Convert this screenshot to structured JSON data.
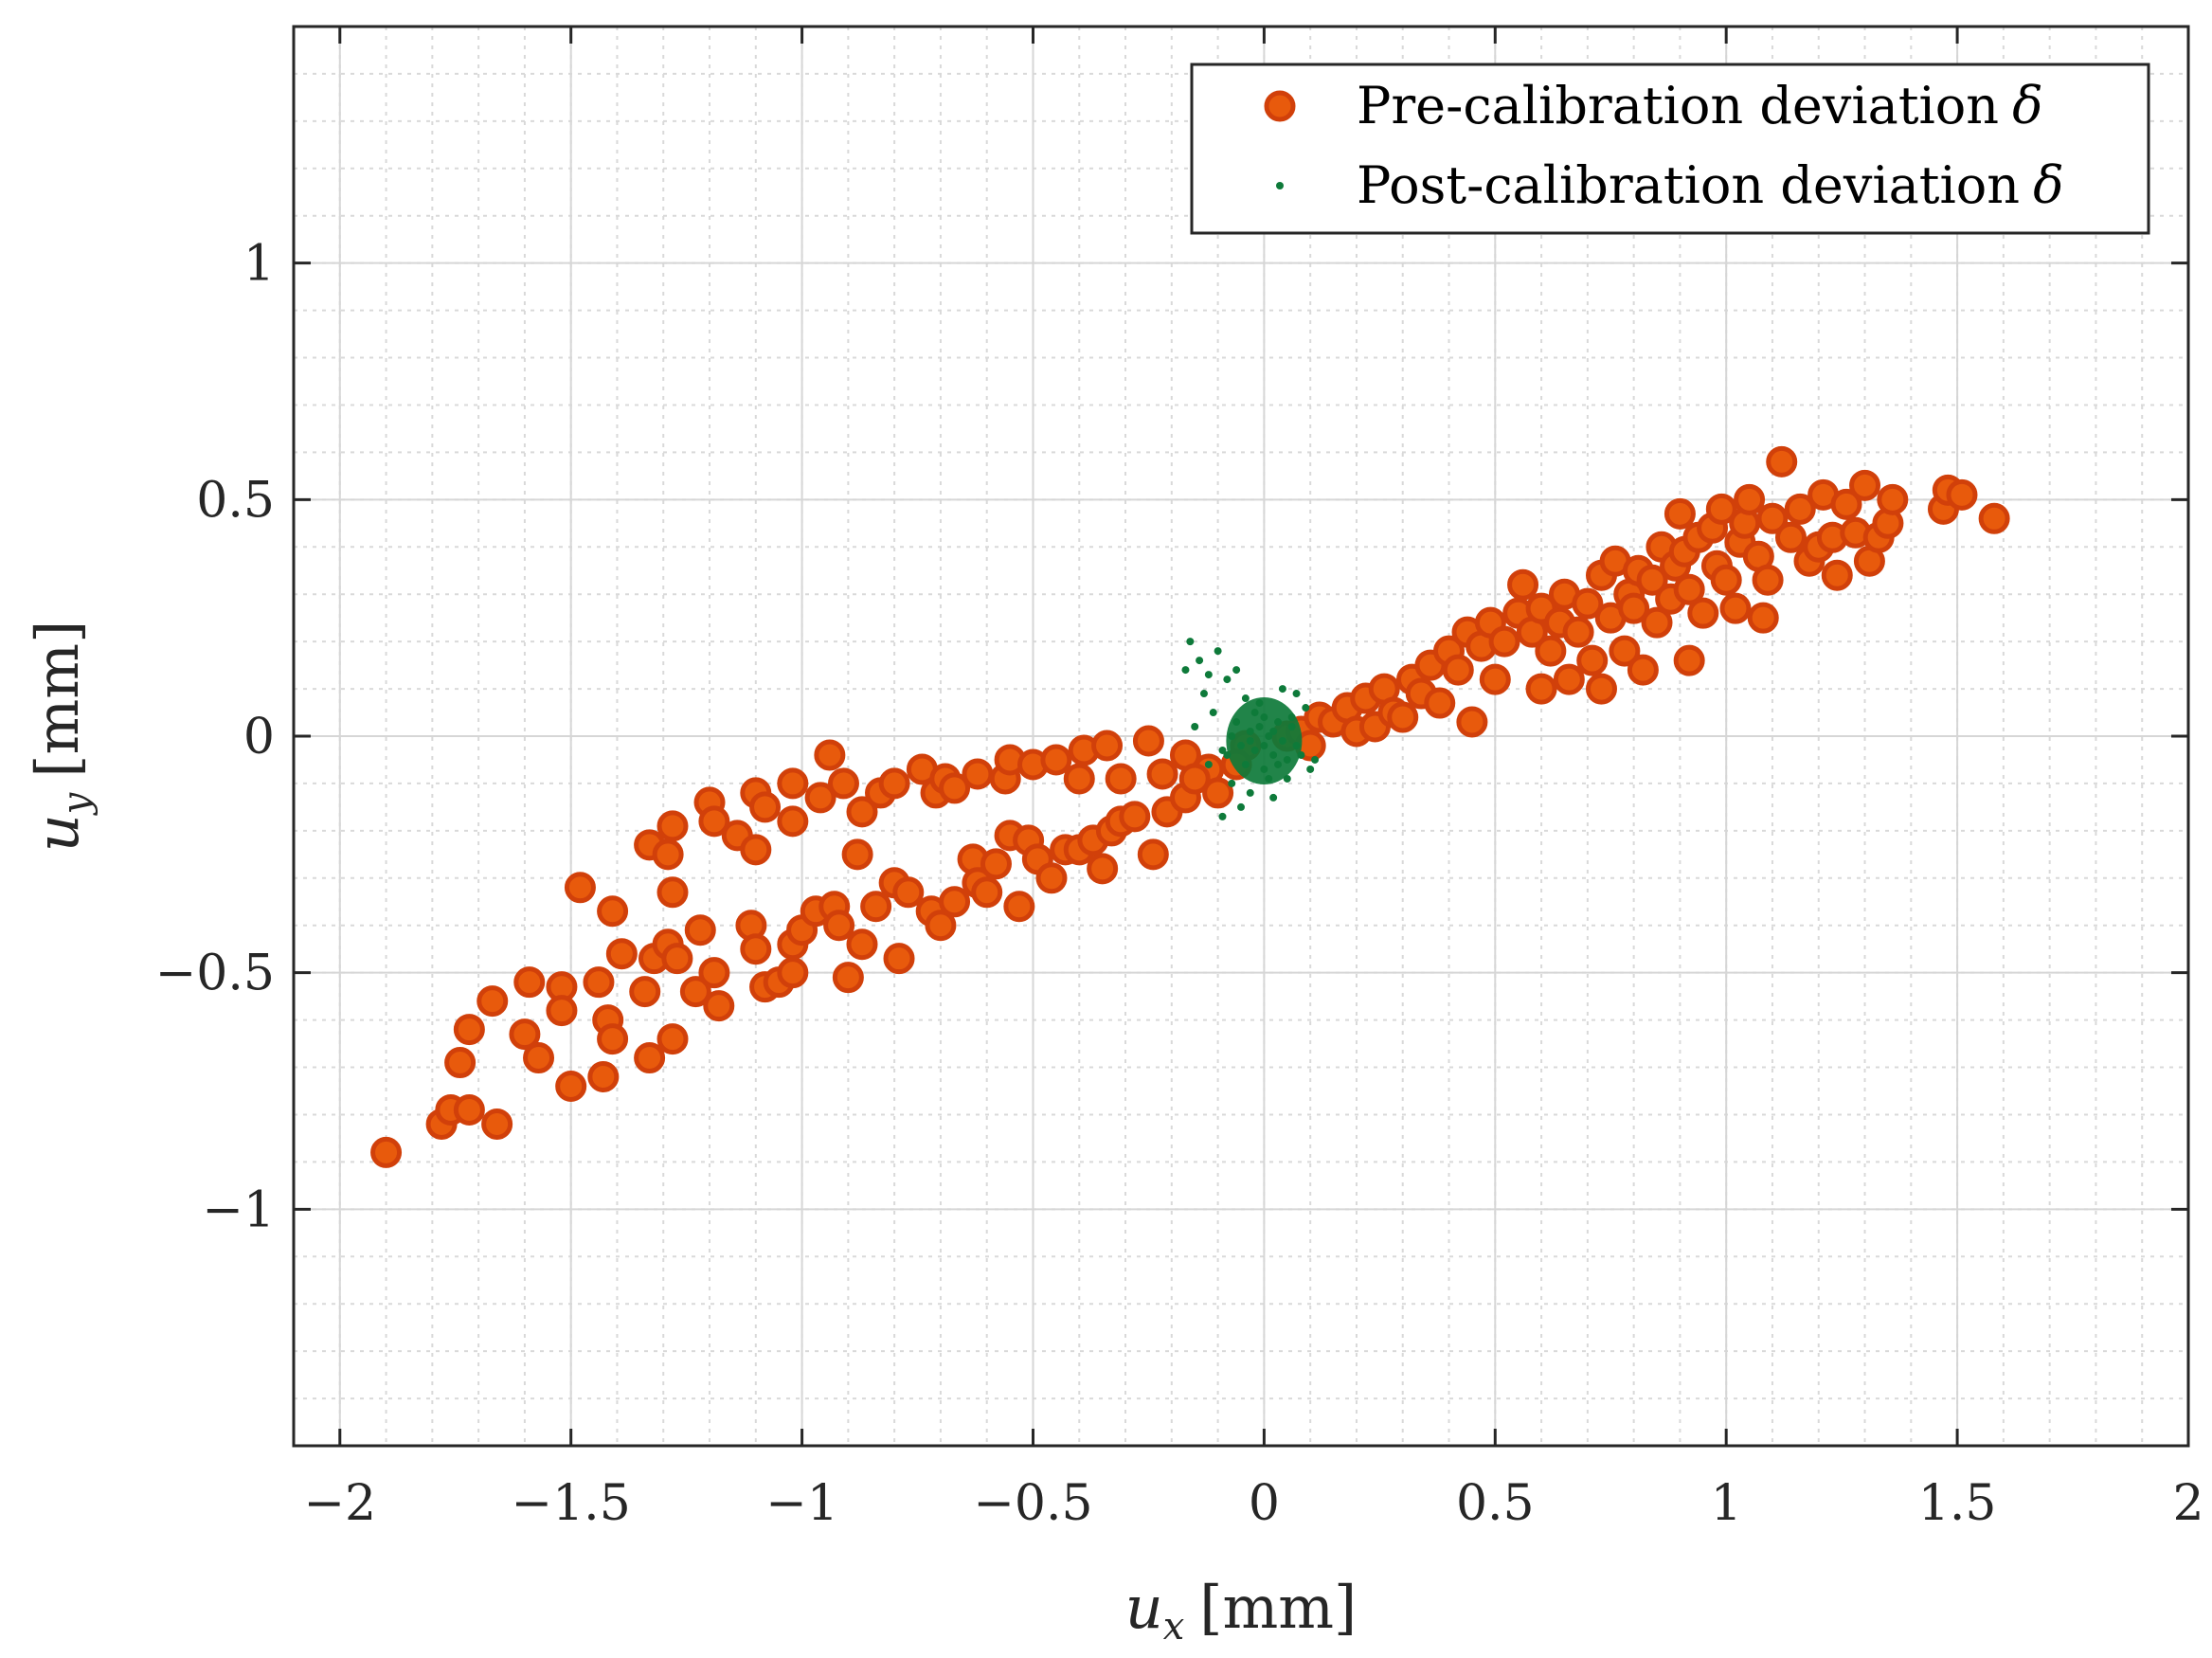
{
  "chart_data": {
    "type": "scatter",
    "xlabel": "u_x [mm]",
    "ylabel": "u_y [mm]",
    "xlabel_var": "u",
    "xlabel_sub": "x",
    "xlabel_unit": "[mm]",
    "ylabel_var": "u",
    "ylabel_sub": "y",
    "ylabel_unit": "[mm]",
    "xlim": [
      -2.1,
      2.0
    ],
    "ylim": [
      -1.5,
      1.5
    ],
    "xticks": [
      -2,
      -1.5,
      -1,
      -0.5,
      0,
      0.5,
      1,
      1.5,
      2
    ],
    "yticks": [
      -1,
      -0.5,
      0,
      0.5,
      1
    ],
    "xtick_labels": [
      "−2",
      "−1.5",
      "−1",
      "−0.5",
      "0",
      "0.5",
      "1",
      "1.5",
      "2"
    ],
    "ytick_labels": [
      "−1",
      "−0.5",
      "0",
      "0.5",
      "1"
    ],
    "grid": true,
    "minor_grid": true,
    "legend_position": "top-right",
    "colors": {
      "pre": "#e85a0c",
      "pre_edge": "#d1400a",
      "post": "#0e7a3a",
      "grid": "#d6d6d6",
      "axis": "#262626"
    },
    "series": [
      {
        "name": "Pre-calibration deviation δ",
        "legend_text": "Pre-calibration deviation",
        "marker": "circle",
        "points": [
          [
            -1.9,
            -0.88
          ],
          [
            -1.78,
            -0.82
          ],
          [
            -1.76,
            -0.79
          ],
          [
            -1.72,
            -0.79
          ],
          [
            -1.66,
            -0.82
          ],
          [
            -1.74,
            -0.69
          ],
          [
            -1.72,
            -0.62
          ],
          [
            -1.67,
            -0.56
          ],
          [
            -1.59,
            -0.52
          ],
          [
            -1.52,
            -0.53
          ],
          [
            -1.6,
            -0.63
          ],
          [
            -1.57,
            -0.68
          ],
          [
            -1.52,
            -0.58
          ],
          [
            -1.5,
            -0.74
          ],
          [
            -1.44,
            -0.52
          ],
          [
            -1.42,
            -0.6
          ],
          [
            -1.41,
            -0.64
          ],
          [
            -1.43,
            -0.72
          ],
          [
            -1.39,
            -0.46
          ],
          [
            -1.34,
            -0.54
          ],
          [
            -1.33,
            -0.68
          ],
          [
            -1.32,
            -0.47
          ],
          [
            -1.29,
            -0.44
          ],
          [
            -1.27,
            -0.47
          ],
          [
            -1.28,
            -0.64
          ],
          [
            -1.48,
            -0.32
          ],
          [
            -1.41,
            -0.37
          ],
          [
            -1.33,
            -0.23
          ],
          [
            -1.29,
            -0.25
          ],
          [
            -1.28,
            -0.19
          ],
          [
            -1.28,
            -0.33
          ],
          [
            -1.2,
            -0.14
          ],
          [
            -1.19,
            -0.18
          ],
          [
            -1.14,
            -0.21
          ],
          [
            -1.1,
            -0.12
          ],
          [
            -1.1,
            -0.24
          ],
          [
            -1.08,
            -0.15
          ],
          [
            -1.02,
            -0.1
          ],
          [
            -1.02,
            -0.18
          ],
          [
            -0.96,
            -0.13
          ],
          [
            -0.94,
            -0.04
          ],
          [
            -0.91,
            -0.1
          ],
          [
            -0.87,
            -0.16
          ],
          [
            -0.83,
            -0.12
          ],
          [
            -0.8,
            -0.1
          ],
          [
            -0.74,
            -0.07
          ],
          [
            -0.71,
            -0.12
          ],
          [
            -0.69,
            -0.09
          ],
          [
            -0.67,
            -0.11
          ],
          [
            -0.62,
            -0.08
          ],
          [
            -0.56,
            -0.09
          ],
          [
            -0.55,
            -0.05
          ],
          [
            -0.5,
            -0.06
          ],
          [
            -0.45,
            -0.05
          ],
          [
            -0.4,
            -0.09
          ],
          [
            -0.39,
            -0.03
          ],
          [
            -0.34,
            -0.02
          ],
          [
            -0.31,
            -0.09
          ],
          [
            -0.25,
            -0.01
          ],
          [
            -0.22,
            -0.08
          ],
          [
            -0.17,
            -0.04
          ],
          [
            -0.12,
            -0.07
          ],
          [
            -0.04,
            -0.02
          ],
          [
            -1.22,
            -0.41
          ],
          [
            -1.23,
            -0.54
          ],
          [
            -1.19,
            -0.5
          ],
          [
            -1.18,
            -0.57
          ],
          [
            -1.11,
            -0.4
          ],
          [
            -1.1,
            -0.45
          ],
          [
            -1.08,
            -0.53
          ],
          [
            -1.05,
            -0.52
          ],
          [
            -1.02,
            -0.5
          ],
          [
            -1.02,
            -0.44
          ],
          [
            -1.0,
            -0.41
          ],
          [
            -0.97,
            -0.37
          ],
          [
            -0.93,
            -0.36
          ],
          [
            -0.92,
            -0.4
          ],
          [
            -0.9,
            -0.51
          ],
          [
            -0.87,
            -0.44
          ],
          [
            -0.88,
            -0.25
          ],
          [
            -0.84,
            -0.36
          ],
          [
            -0.8,
            -0.31
          ],
          [
            -0.79,
            -0.47
          ],
          [
            -0.77,
            -0.33
          ],
          [
            -0.72,
            -0.37
          ],
          [
            -0.7,
            -0.4
          ],
          [
            -0.67,
            -0.35
          ],
          [
            -0.63,
            -0.26
          ],
          [
            -0.62,
            -0.31
          ],
          [
            -0.6,
            -0.33
          ],
          [
            -0.58,
            -0.27
          ],
          [
            -0.55,
            -0.21
          ],
          [
            -0.53,
            -0.36
          ],
          [
            -0.51,
            -0.22
          ],
          [
            -0.49,
            -0.26
          ],
          [
            -0.46,
            -0.3
          ],
          [
            -0.43,
            -0.24
          ],
          [
            -0.4,
            -0.24
          ],
          [
            -0.37,
            -0.22
          ],
          [
            -0.35,
            -0.28
          ],
          [
            -0.33,
            -0.2
          ],
          [
            -0.31,
            -0.18
          ],
          [
            -0.28,
            -0.17
          ],
          [
            -0.24,
            -0.25
          ],
          [
            -0.21,
            -0.16
          ],
          [
            -0.17,
            -0.13
          ],
          [
            -0.15,
            -0.09
          ],
          [
            -0.1,
            -0.12
          ],
          [
            -0.06,
            -0.06
          ],
          [
            0.05,
            0.0
          ],
          [
            0.08,
            0.01
          ],
          [
            0.1,
            -0.02
          ],
          [
            0.12,
            0.04
          ],
          [
            0.15,
            0.03
          ],
          [
            0.18,
            0.06
          ],
          [
            0.2,
            0.01
          ],
          [
            0.22,
            0.08
          ],
          [
            0.24,
            0.02
          ],
          [
            0.26,
            0.1
          ],
          [
            0.28,
            0.05
          ],
          [
            0.3,
            0.04
          ],
          [
            0.32,
            0.12
          ],
          [
            0.34,
            0.09
          ],
          [
            0.36,
            0.15
          ],
          [
            0.38,
            0.07
          ],
          [
            0.4,
            0.18
          ],
          [
            0.42,
            0.14
          ],
          [
            0.44,
            0.22
          ],
          [
            0.45,
            0.03
          ],
          [
            0.47,
            0.19
          ],
          [
            0.49,
            0.24
          ],
          [
            0.5,
            0.12
          ],
          [
            0.52,
            0.2
          ],
          [
            0.55,
            0.26
          ],
          [
            0.56,
            0.32
          ],
          [
            0.58,
            0.22
          ],
          [
            0.6,
            0.27
          ],
          [
            0.6,
            0.1
          ],
          [
            0.62,
            0.18
          ],
          [
            0.64,
            0.24
          ],
          [
            0.65,
            0.3
          ],
          [
            0.66,
            0.12
          ],
          [
            0.68,
            0.22
          ],
          [
            0.7,
            0.28
          ],
          [
            0.71,
            0.16
          ],
          [
            0.73,
            0.34
          ],
          [
            0.75,
            0.25
          ],
          [
            0.76,
            0.37
          ],
          [
            0.78,
            0.18
          ],
          [
            0.79,
            0.3
          ],
          [
            0.8,
            0.27
          ],
          [
            0.81,
            0.35
          ],
          [
            0.82,
            0.14
          ],
          [
            0.84,
            0.33
          ],
          [
            0.85,
            0.24
          ],
          [
            0.86,
            0.4
          ],
          [
            0.88,
            0.29
          ],
          [
            0.89,
            0.36
          ],
          [
            0.9,
            0.47
          ],
          [
            0.91,
            0.39
          ],
          [
            0.92,
            0.31
          ],
          [
            0.94,
            0.42
          ],
          [
            0.95,
            0.26
          ],
          [
            0.97,
            0.44
          ],
          [
            0.98,
            0.36
          ],
          [
            0.99,
            0.48
          ],
          [
            1.0,
            0.33
          ],
          [
            1.02,
            0.27
          ],
          [
            1.03,
            0.41
          ],
          [
            1.04,
            0.45
          ],
          [
            1.05,
            0.5
          ],
          [
            1.07,
            0.38
          ],
          [
            1.08,
            0.25
          ],
          [
            1.09,
            0.33
          ],
          [
            1.1,
            0.46
          ],
          [
            1.12,
            0.58
          ],
          [
            1.14,
            0.42
          ],
          [
            1.16,
            0.48
          ],
          [
            1.18,
            0.37
          ],
          [
            1.2,
            0.4
          ],
          [
            1.21,
            0.51
          ],
          [
            1.23,
            0.42
          ],
          [
            1.24,
            0.34
          ],
          [
            1.26,
            0.49
          ],
          [
            1.28,
            0.43
          ],
          [
            1.3,
            0.53
          ],
          [
            1.31,
            0.37
          ],
          [
            1.33,
            0.42
          ],
          [
            1.35,
            0.45
          ],
          [
            1.36,
            0.5
          ],
          [
            1.47,
            0.48
          ],
          [
            1.48,
            0.52
          ],
          [
            1.51,
            0.51
          ],
          [
            1.58,
            0.46
          ],
          [
            0.92,
            0.16
          ],
          [
            0.73,
            0.1
          ]
        ]
      },
      {
        "name": "Post-calibration deviation δ",
        "legend_text": "Post-calibration deviation",
        "marker": "point",
        "points": [
          [
            -0.16,
            0.2
          ],
          [
            -0.14,
            0.16
          ],
          [
            -0.12,
            0.13
          ],
          [
            -0.17,
            0.14
          ],
          [
            -0.1,
            0.18
          ],
          [
            -0.13,
            0.09
          ],
          [
            -0.08,
            0.12
          ],
          [
            -0.06,
            0.14
          ],
          [
            -0.11,
            0.05
          ],
          [
            -0.15,
            0.02
          ],
          [
            -0.09,
            -0.03
          ],
          [
            -0.12,
            -0.06
          ],
          [
            -0.07,
            -0.1
          ],
          [
            -0.09,
            -0.17
          ],
          [
            -0.05,
            -0.15
          ],
          [
            -0.03,
            -0.12
          ],
          [
            0.02,
            -0.13
          ],
          [
            0.05,
            -0.09
          ],
          [
            0.1,
            -0.07
          ],
          [
            0.11,
            -0.05
          ],
          [
            0.09,
            0.06
          ],
          [
            0.07,
            0.09
          ],
          [
            0.04,
            0.1
          ],
          [
            -0.04,
            0.08
          ],
          [
            -0.02,
            0.05
          ],
          [
            0.0,
            0.04
          ],
          [
            0.03,
            0.03
          ],
          [
            0.06,
            0.02
          ],
          [
            -0.06,
            0.03
          ],
          [
            -0.03,
            0.01
          ],
          [
            0.01,
            0.0
          ],
          [
            0.04,
            -0.01
          ],
          [
            0.07,
            -0.02
          ],
          [
            -0.05,
            -0.02
          ],
          [
            -0.02,
            -0.03
          ],
          [
            0.02,
            -0.04
          ],
          [
            0.05,
            -0.05
          ],
          [
            -0.04,
            -0.06
          ],
          [
            0.0,
            -0.07
          ],
          [
            0.03,
            -0.06
          ],
          [
            -0.01,
            0.02
          ],
          [
            0.02,
            0.01
          ],
          [
            -0.03,
            -0.01
          ],
          [
            0.06,
            0.04
          ],
          [
            -0.07,
            0.0
          ],
          [
            0.08,
            -0.04
          ],
          [
            -0.08,
            -0.04
          ],
          [
            0.01,
            -0.09
          ],
          [
            -0.01,
            0.07
          ],
          [
            0.0,
            -0.02
          ]
        ]
      }
    ]
  }
}
